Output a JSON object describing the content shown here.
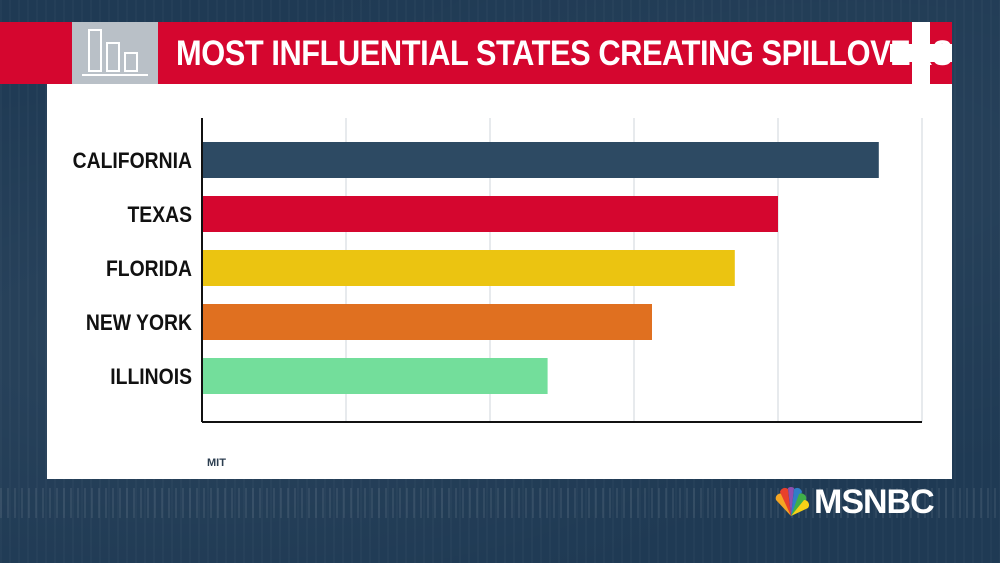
{
  "header": {
    "title": "MOST INFLUENTIAL STATES CREATING SPILLOVERS"
  },
  "source": "MIT",
  "network": "MSNBC",
  "icons": {
    "header_icon": "bar-chart-icon",
    "corner": "plus-icon",
    "logo": "peacock-logo"
  },
  "colors": {
    "header_red": "#d5062f",
    "background": "#1f3a54",
    "panel": "#ffffff"
  },
  "chart_data": {
    "type": "bar",
    "orientation": "horizontal",
    "categories": [
      "CALIFORNIA",
      "TEXAS",
      "FLORIDA",
      "NEW YORK",
      "ILLINOIS"
    ],
    "values": [
      94,
      80,
      74,
      62.5,
      48
    ],
    "colors": [
      "#2d4a63",
      "#d5062f",
      "#ebc411",
      "#e07020",
      "#73de9b"
    ],
    "xlim": [
      0,
      100
    ],
    "grid": true,
    "title": "",
    "xlabel": "",
    "ylabel": ""
  }
}
